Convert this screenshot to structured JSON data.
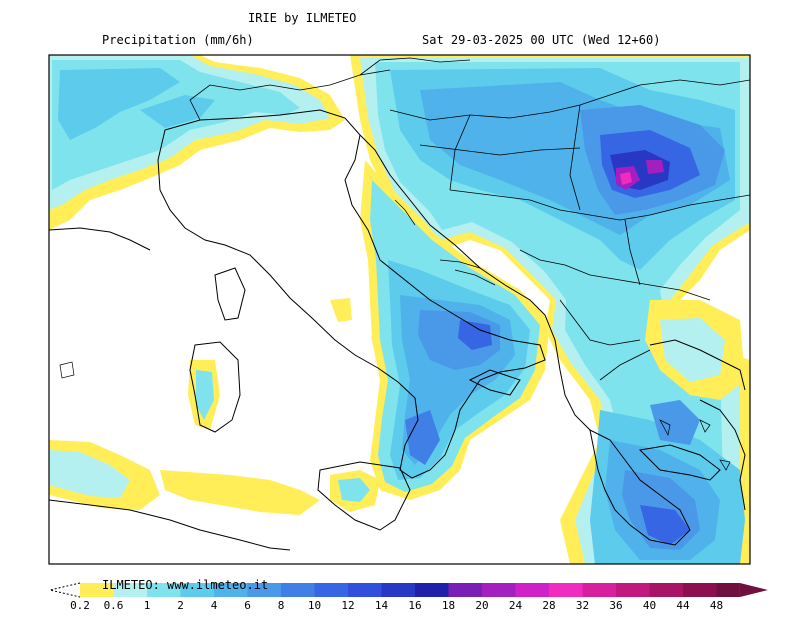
{
  "header": {
    "title": "IRIE by ILMETEO",
    "variable": "Precipitation (mm/6h)",
    "valid_time": "Sat 29-03-2025 00 UTC (Wed 12+60)"
  },
  "footer": {
    "credit": "ILMETEO: www.ilmeteo.it"
  },
  "colorbar": {
    "labels": [
      "0.2",
      "0.6",
      "1",
      "2",
      "4",
      "6",
      "8",
      "10",
      "12",
      "14",
      "16",
      "18",
      "20",
      "24",
      "28",
      "32",
      "36",
      "40",
      "44",
      "48"
    ],
    "colors": [
      "#ffee58",
      "#b4f0f0",
      "#7fe3ee",
      "#5ccbec",
      "#4fb2ea",
      "#4a98e8",
      "#3f7fe6",
      "#3766e4",
      "#2f4fdc",
      "#2838c4",
      "#2020a8",
      "#7a1fb4",
      "#a31fc0",
      "#d020c8",
      "#f02cc0",
      "#d8209e",
      "#c0187e",
      "#a81466",
      "#8c1050",
      "#70103e"
    ]
  },
  "colors": {
    "land": "#ffffff",
    "coast": "#000000"
  }
}
